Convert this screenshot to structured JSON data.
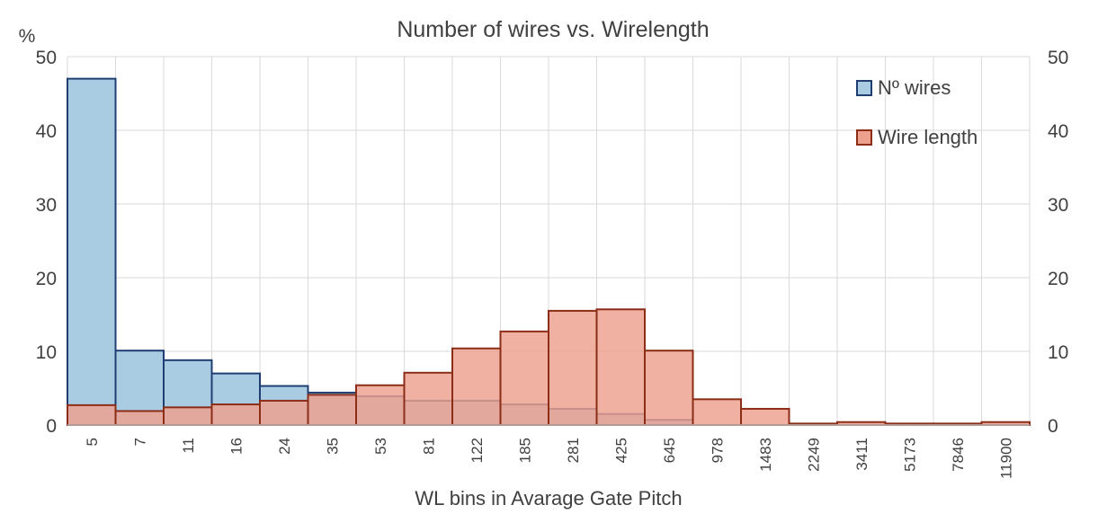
{
  "chart_data": {
    "type": "bar",
    "title": "Number of wires vs. Wirelength",
    "ylabel": "%",
    "xlabel": "WL bins in Avarage Gate Pitch",
    "ylim": [
      0,
      50
    ],
    "yticks": [
      0,
      10,
      20,
      30,
      40,
      50
    ],
    "secondary_yticks": [
      0,
      10,
      20,
      30,
      40,
      50
    ],
    "grid": true,
    "legend_position": "top-right",
    "categories": [
      "5",
      "7",
      "11",
      "16",
      "24",
      "35",
      "53",
      "81",
      "122",
      "185",
      "281",
      "425",
      "645",
      "978",
      "1483",
      "2249",
      "3411",
      "5173",
      "7846",
      "11900"
    ],
    "series": [
      {
        "name": "Nº wires",
        "fill": "#a9cce3",
        "stroke": "#1f3f73",
        "values": [
          47.0,
          10.1,
          8.8,
          7.0,
          5.3,
          4.4,
          3.9,
          3.3,
          3.3,
          2.8,
          2.2,
          1.5,
          0.7,
          0.0,
          0.0,
          0.0,
          0.0,
          0.0,
          0.0,
          0.0
        ]
      },
      {
        "name": "Wire length",
        "fill": "#eea08e",
        "stroke": "#8b2d17",
        "values": [
          2.7,
          1.9,
          2.4,
          2.8,
          3.3,
          4.1,
          5.4,
          7.1,
          10.4,
          12.7,
          15.5,
          15.7,
          10.1,
          3.5,
          2.2,
          0.2,
          0.4,
          0.2,
          0.2,
          0.4
        ]
      }
    ]
  }
}
